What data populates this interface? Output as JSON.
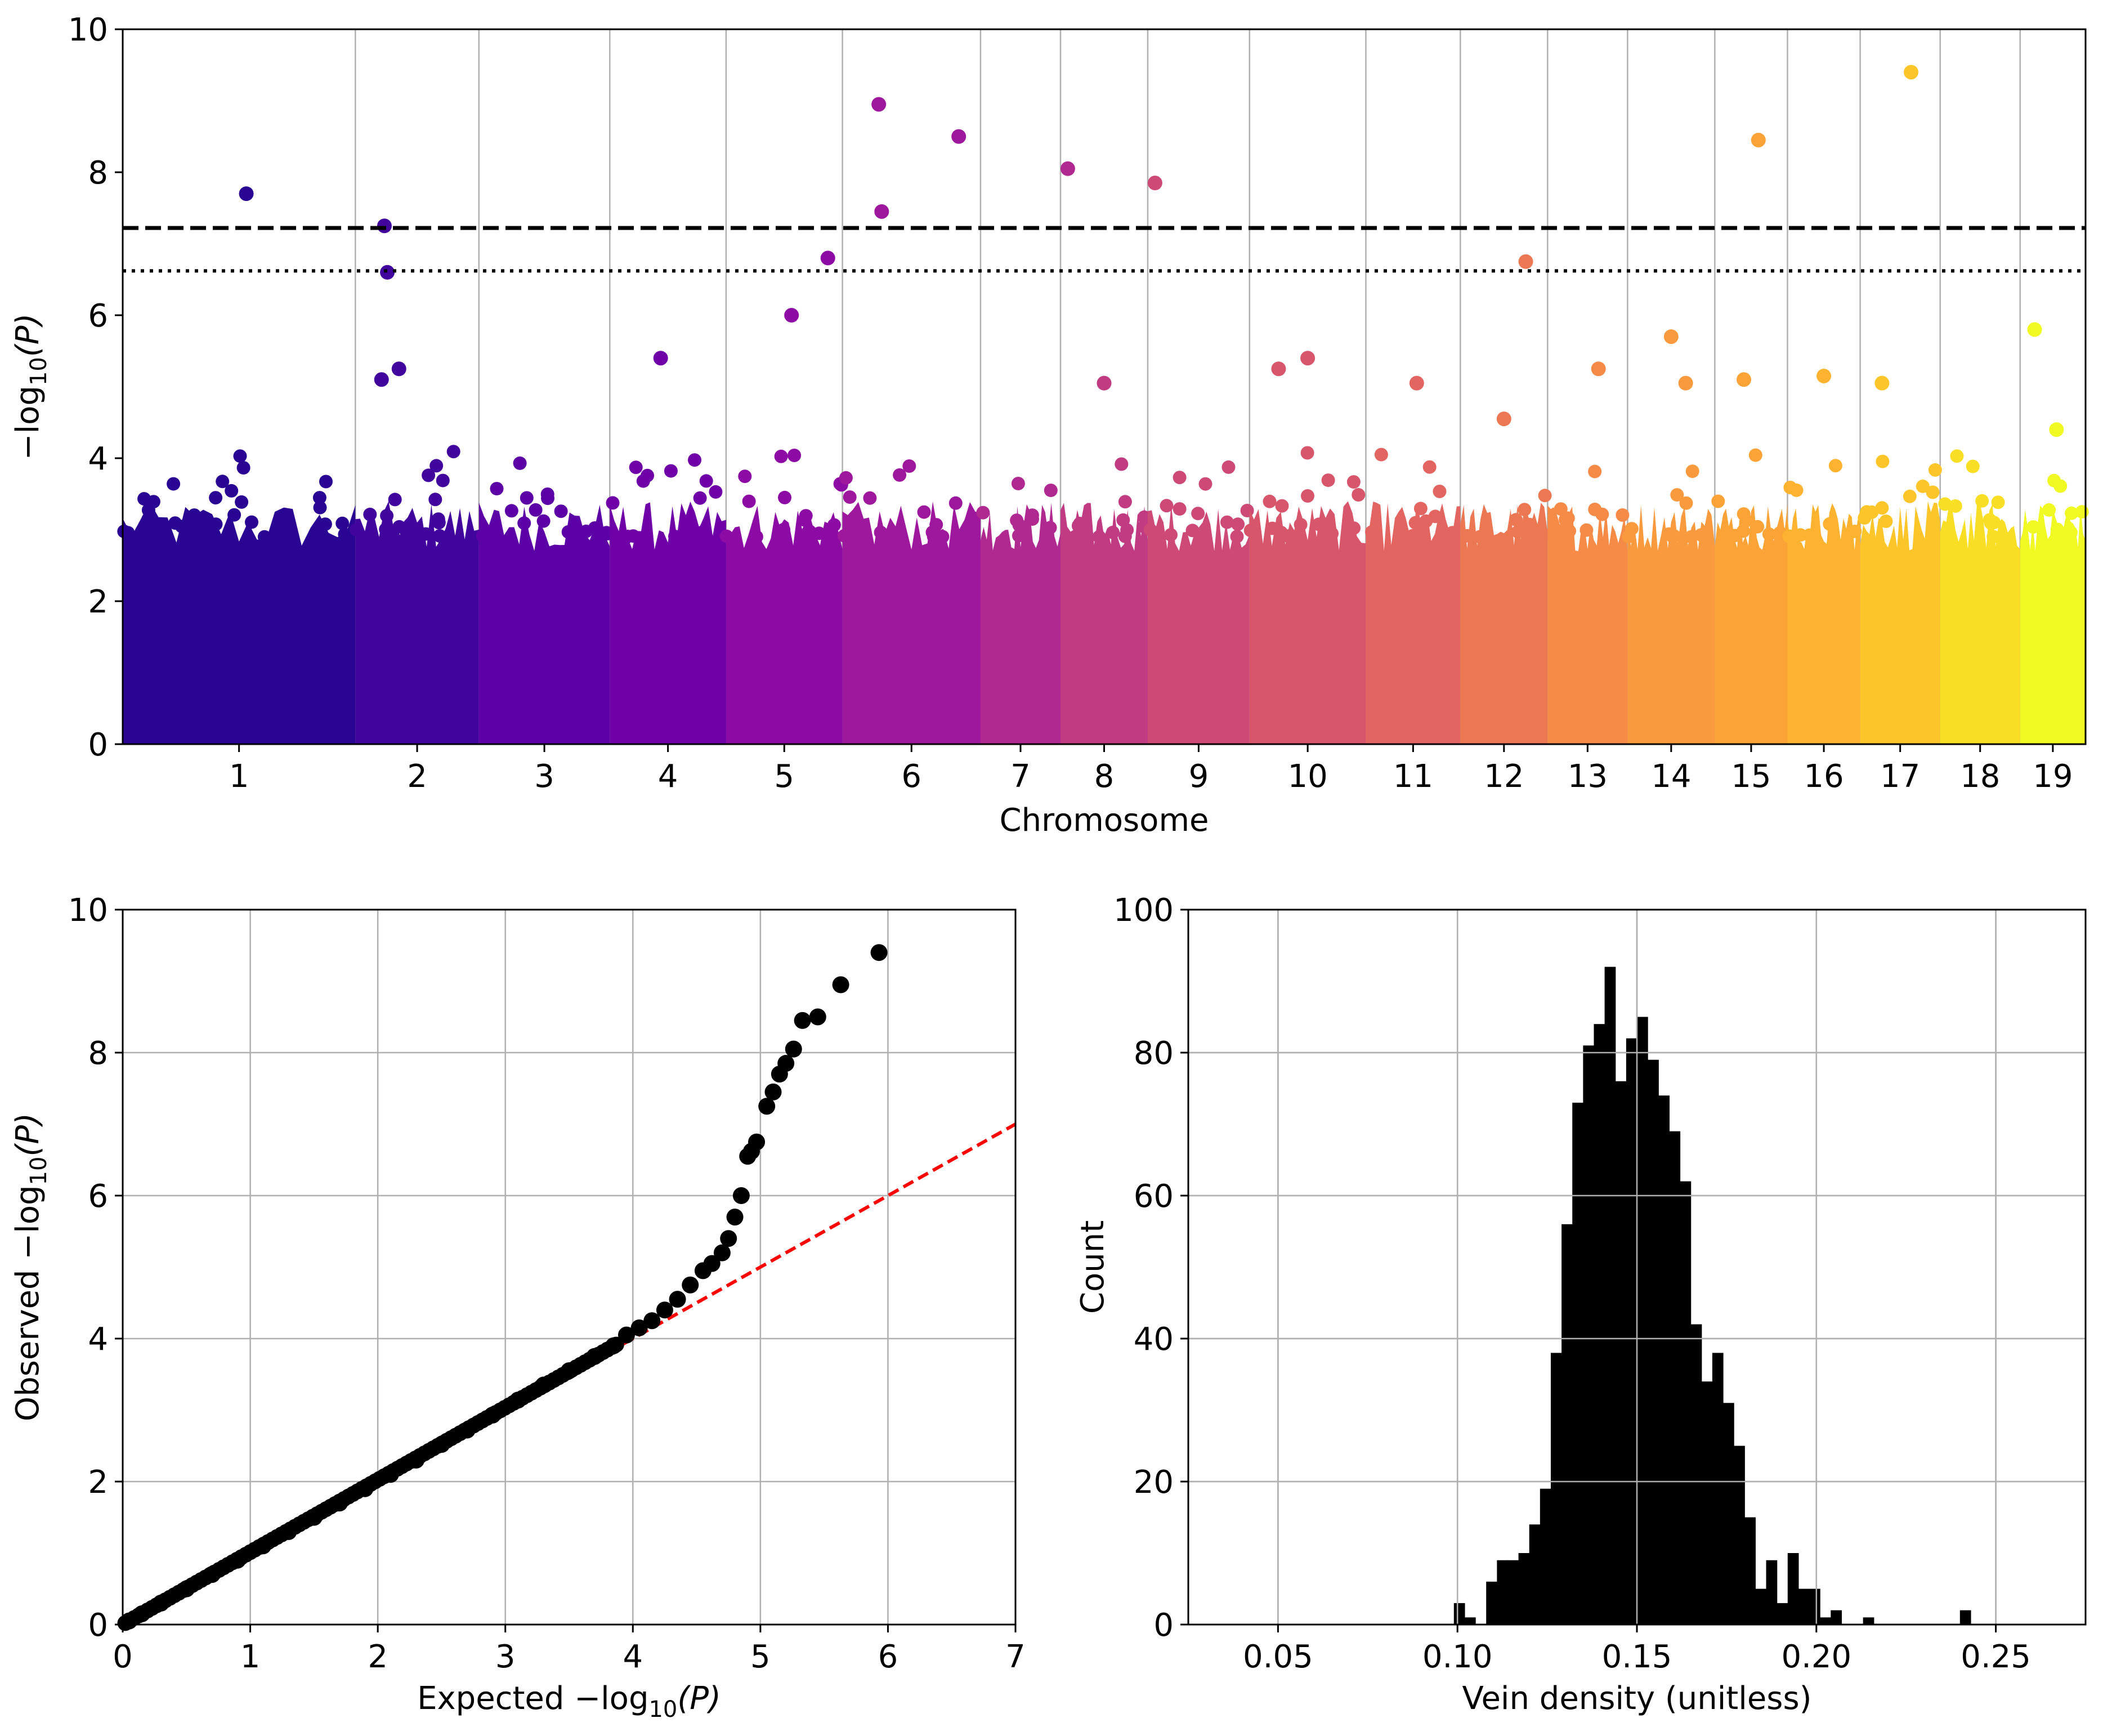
{
  "colors": {
    "chromosome_palette": [
      "#2a0593",
      "#41049d",
      "#5c01a6",
      "#6f00a8",
      "#8d0ba5",
      "#9e189d",
      "#b02991",
      "#c13b82",
      "#cd4a76",
      "#d7566c",
      "#e26561",
      "#ec7853",
      "#f58b47",
      "#fa9a3e",
      "#fca338",
      "#fdb32f",
      "#fcc62b",
      "#f8df25",
      "#f0f921"
    ],
    "qq_line": "#ff0000",
    "points": "#000000",
    "histogram": "#000000",
    "grid": "#b0b0b0"
  },
  "chart_data": [
    {
      "type": "scatter",
      "xlabel": "Chromosome",
      "ylabel_text": "−log",
      "ylabel_sub": "10",
      "ylabel_tail": "(P)",
      "ylim": [
        0,
        10
      ],
      "yticks": [
        "0",
        "2",
        "4",
        "6",
        "8",
        "10"
      ],
      "categories": [
        "1",
        "2",
        "3",
        "4",
        "5",
        "6",
        "7",
        "8",
        "9",
        "10",
        "11",
        "12",
        "13",
        "14",
        "15",
        "16",
        "17",
        "18",
        "19"
      ],
      "chromosome_spans": [
        [
          0,
          1.6
        ],
        [
          1.6,
          2.45
        ],
        [
          2.45,
          3.35
        ],
        [
          3.35,
          4.15
        ],
        [
          4.15,
          4.95
        ],
        [
          4.95,
          5.9
        ],
        [
          5.9,
          6.45
        ],
        [
          6.45,
          7.05
        ],
        [
          7.05,
          7.75
        ],
        [
          7.75,
          8.55
        ],
        [
          8.55,
          9.2
        ],
        [
          9.2,
          9.8
        ],
        [
          9.8,
          10.35
        ],
        [
          10.35,
          10.95
        ],
        [
          10.95,
          11.45
        ],
        [
          11.45,
          11.95
        ],
        [
          11.95,
          12.5
        ],
        [
          12.5,
          13.05
        ],
        [
          13.05,
          13.5
        ]
      ],
      "thresholds": [
        {
          "value": 7.22,
          "style": "dashed"
        },
        {
          "value": 6.62,
          "style": "dotted"
        }
      ],
      "grid": "x-only",
      "notable_points": [
        {
          "chr": 1,
          "x": 0.85,
          "y": 7.7
        },
        {
          "chr": 2,
          "x": 1.8,
          "y": 7.25
        },
        {
          "chr": 2,
          "x": 1.82,
          "y": 6.6
        },
        {
          "chr": 2,
          "x": 1.78,
          "y": 5.1
        },
        {
          "chr": 2,
          "x": 1.9,
          "y": 5.25
        },
        {
          "chr": 4,
          "x": 3.7,
          "y": 5.4
        },
        {
          "chr": 5,
          "x": 4.6,
          "y": 6.0
        },
        {
          "chr": 5,
          "x": 4.85,
          "y": 6.8
        },
        {
          "chr": 6,
          "x": 5.2,
          "y": 8.95
        },
        {
          "chr": 6,
          "x": 5.22,
          "y": 7.45
        },
        {
          "chr": 6,
          "x": 5.75,
          "y": 8.5
        },
        {
          "chr": 7,
          "x": 6.5,
          "y": 8.05
        },
        {
          "chr": 8,
          "x": 6.75,
          "y": 5.05
        },
        {
          "chr": 9,
          "x": 7.1,
          "y": 7.85
        },
        {
          "chr": 10,
          "x": 7.95,
          "y": 5.25
        },
        {
          "chr": 10,
          "x": 8.15,
          "y": 5.4
        },
        {
          "chr": 11,
          "x": 8.9,
          "y": 5.05
        },
        {
          "chr": 12,
          "x": 9.5,
          "y": 4.55
        },
        {
          "chr": 12,
          "x": 9.65,
          "y": 6.75
        },
        {
          "chr": 13,
          "x": 10.15,
          "y": 5.25
        },
        {
          "chr": 14,
          "x": 10.65,
          "y": 5.7
        },
        {
          "chr": 14,
          "x": 10.75,
          "y": 5.05
        },
        {
          "chr": 15,
          "x": 11.15,
          "y": 5.1
        },
        {
          "chr": 15,
          "x": 11.25,
          "y": 8.45
        },
        {
          "chr": 16,
          "x": 11.7,
          "y": 5.15
        },
        {
          "chr": 17,
          "x": 12.1,
          "y": 5.05
        },
        {
          "chr": 17,
          "x": 12.3,
          "y": 9.4
        },
        {
          "chr": 19,
          "x": 13.15,
          "y": 5.8
        },
        {
          "chr": 19,
          "x": 13.3,
          "y": 4.4
        }
      ]
    },
    {
      "type": "scatter",
      "xlabel_text": "Expected −log",
      "xlabel_sub": "10",
      "xlabel_tail": "(P)",
      "ylabel_text": "Observed −log",
      "ylabel_sub": "10",
      "ylabel_tail": "(P)",
      "xlim": [
        0,
        7
      ],
      "ylim": [
        0,
        10
      ],
      "xticks": [
        "0",
        "1",
        "2",
        "3",
        "4",
        "5",
        "6",
        "7"
      ],
      "yticks": [
        "0",
        "2",
        "4",
        "6",
        "8",
        "10"
      ],
      "grid": true,
      "reference_line": {
        "from": [
          0,
          0
        ],
        "to": [
          7,
          7
        ],
        "style": "dashed"
      },
      "points": [
        [
          0.05,
          0.05
        ],
        [
          0.15,
          0.15
        ],
        [
          0.3,
          0.3
        ],
        [
          0.5,
          0.5
        ],
        [
          0.7,
          0.7
        ],
        [
          0.9,
          0.9
        ],
        [
          1.1,
          1.1
        ],
        [
          1.3,
          1.3
        ],
        [
          1.5,
          1.5
        ],
        [
          1.7,
          1.7
        ],
        [
          1.9,
          1.9
        ],
        [
          2.1,
          2.1
        ],
        [
          2.3,
          2.3
        ],
        [
          2.5,
          2.52
        ],
        [
          2.7,
          2.72
        ],
        [
          2.9,
          2.93
        ],
        [
          3.1,
          3.14
        ],
        [
          3.3,
          3.35
        ],
        [
          3.5,
          3.55
        ],
        [
          3.7,
          3.75
        ],
        [
          3.85,
          3.9
        ],
        [
          3.95,
          4.05
        ],
        [
          4.05,
          4.15
        ],
        [
          4.15,
          4.25
        ],
        [
          4.25,
          4.4
        ],
        [
          4.35,
          4.55
        ],
        [
          4.45,
          4.75
        ],
        [
          4.55,
          4.95
        ],
        [
          4.62,
          5.05
        ],
        [
          4.7,
          5.2
        ],
        [
          4.75,
          5.4
        ],
        [
          4.8,
          5.7
        ],
        [
          4.85,
          6.0
        ],
        [
          4.9,
          6.55
        ],
        [
          4.93,
          6.62
        ],
        [
          4.97,
          6.75
        ],
        [
          5.05,
          7.25
        ],
        [
          5.1,
          7.45
        ],
        [
          5.15,
          7.7
        ],
        [
          5.2,
          7.85
        ],
        [
          5.26,
          8.05
        ],
        [
          5.33,
          8.45
        ],
        [
          5.45,
          8.5
        ],
        [
          5.63,
          8.95
        ],
        [
          5.93,
          9.4
        ]
      ]
    },
    {
      "type": "bar",
      "subtype": "histogram",
      "xlabel": "Vein density (unitless)",
      "ylabel": "Count",
      "xlim": [
        0.025,
        0.275
      ],
      "ylim": [
        0,
        100
      ],
      "xticks": [
        "0.05",
        "0.10",
        "0.15",
        "0.20",
        "0.25"
      ],
      "yticks": [
        "0",
        "20",
        "40",
        "60",
        "80",
        "100"
      ],
      "grid": true,
      "bin_start": 0.099,
      "bin_width": 0.003,
      "counts": [
        3,
        1,
        0,
        6,
        9,
        9,
        10,
        14,
        19,
        38,
        56,
        73,
        81,
        84,
        92,
        76,
        82,
        85,
        79,
        74,
        69,
        62,
        42,
        34,
        38,
        31,
        25,
        15,
        5,
        9,
        3,
        10,
        5,
        5,
        1,
        2,
        0,
        0,
        1,
        0,
        0,
        0,
        0,
        0,
        0,
        0,
        0,
        2
      ]
    }
  ]
}
